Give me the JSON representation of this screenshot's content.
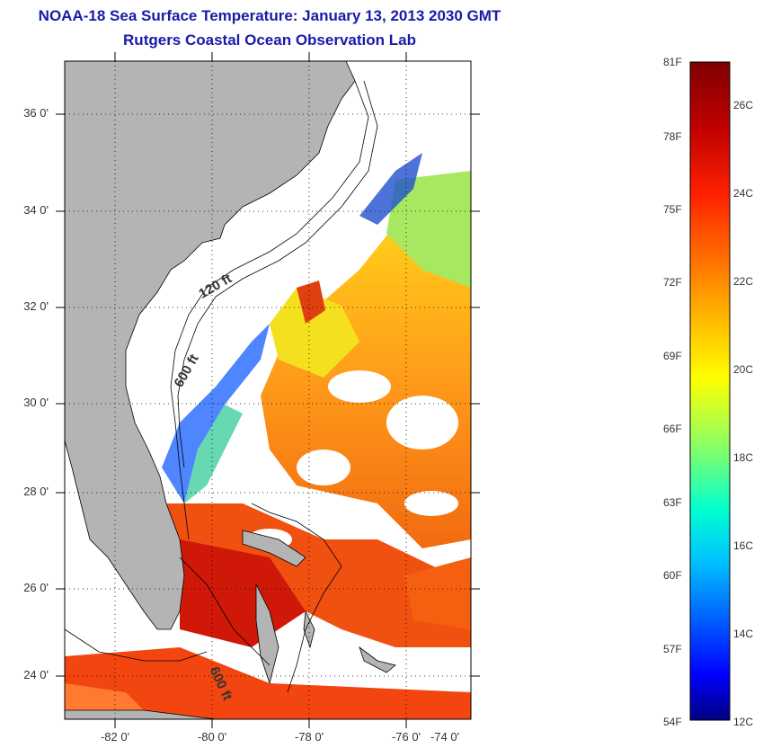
{
  "header": {
    "title": "NOAA-18 Sea Surface Temperature:  January 13, 2013 2030 GMT",
    "subtitle": "Rutgers Coastal Ocean Observation Lab"
  },
  "map": {
    "lat_labels": [
      "36 0'",
      "34 0'",
      "32 0'",
      "30 0'",
      "28 0'",
      "26 0'",
      "24 0'"
    ],
    "lon_labels": [
      "-82 0'",
      "-80 0'",
      "-78 0'",
      "-76 0'",
      "-74 0'"
    ],
    "contour_labels": [
      "120 ft",
      "600 ft",
      "600 ft"
    ],
    "land_color": "#b4b4b4",
    "cloud_color": "#ffffff"
  },
  "colorbar": {
    "f_labels": [
      "81F",
      "78F",
      "75F",
      "72F",
      "69F",
      "66F",
      "63F",
      "60F",
      "57F",
      "54F"
    ],
    "c_labels": [
      "26C",
      "24C",
      "22C",
      "20C",
      "18C",
      "16C",
      "14C",
      "12C"
    ],
    "colors": [
      "#800000",
      "#c00000",
      "#ff2000",
      "#ff6a00",
      "#ffb000",
      "#fff000",
      "#c0ff40",
      "#60ff90",
      "#00ffe0",
      "#00b0ff",
      "#0060ff",
      "#0010ff",
      "#000090"
    ]
  }
}
